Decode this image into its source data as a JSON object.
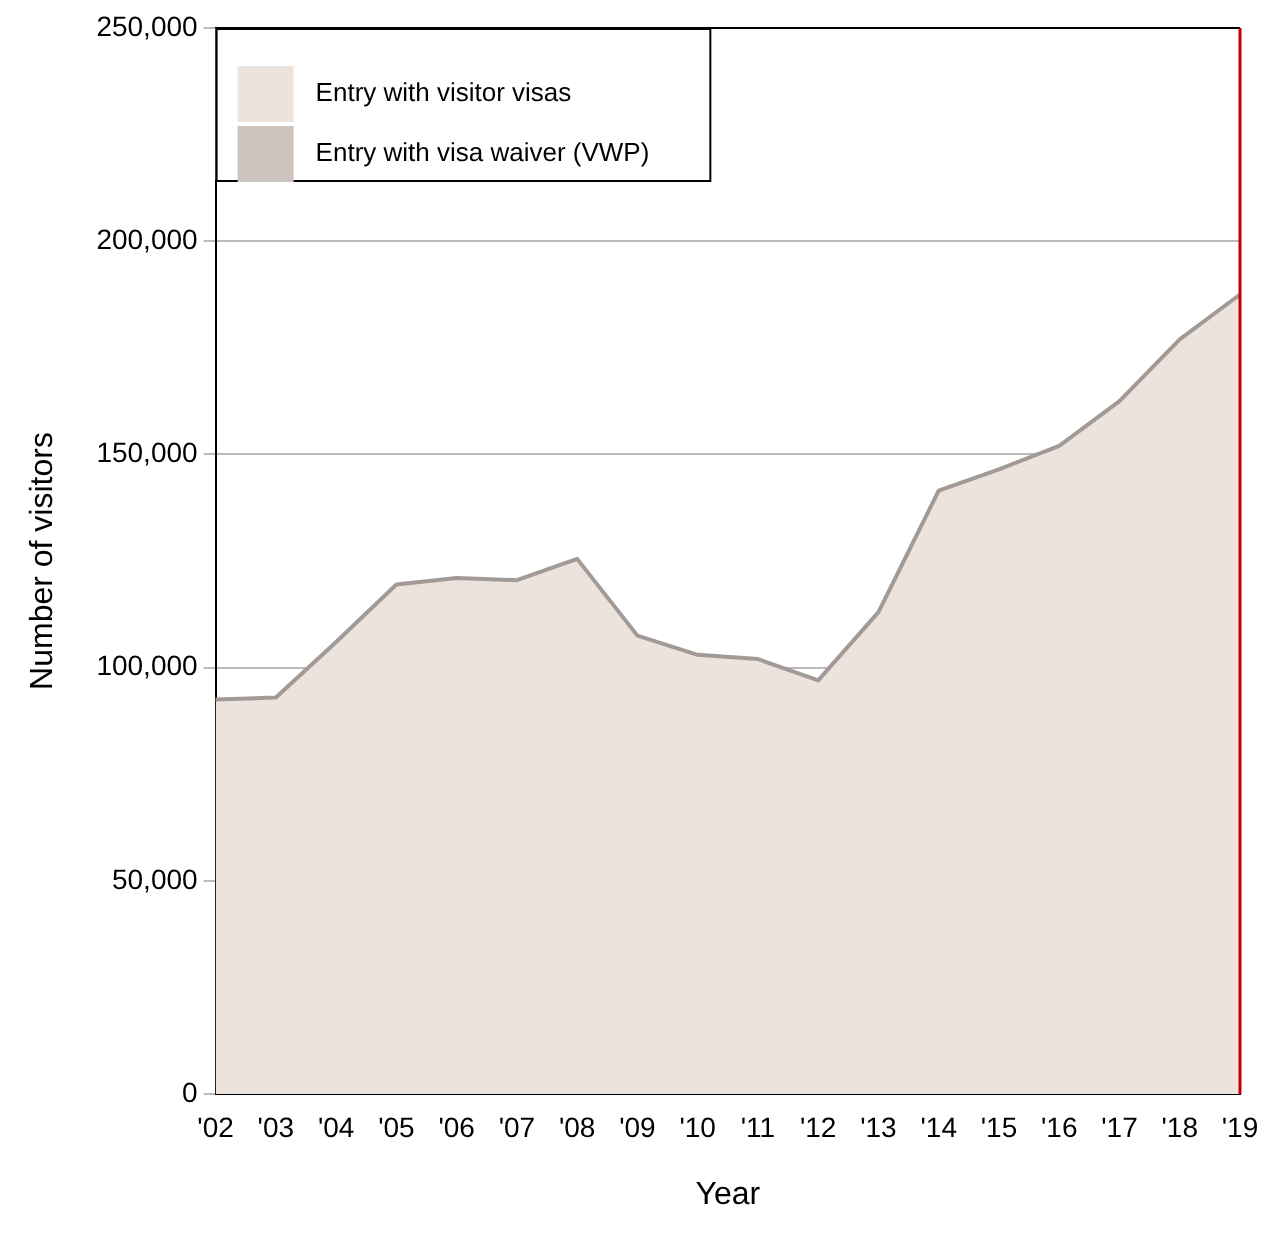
{
  "chart_data": {
    "type": "area",
    "xlabel": "Year",
    "ylabel": "Number of visitors",
    "categories": [
      "'02",
      "'03",
      "'04",
      "'05",
      "'06",
      "'07",
      "'08",
      "'09",
      "'10",
      "'11",
      "'12",
      "'13",
      "'14",
      "'15",
      "'16",
      "'17",
      "'18",
      "'19"
    ],
    "series": [
      {
        "name": "Entry with visitor visas",
        "color": "#ede3dd",
        "values": [
          92500,
          93000,
          106000,
          119500,
          121000,
          120500,
          125500,
          107500,
          103000,
          102000,
          97000,
          113000,
          141500,
          146500,
          152000,
          162500,
          177000,
          187500
        ]
      },
      {
        "name": "Entry with visa waiver (VWP)",
        "color": "#cdc4bf",
        "values": [
          null,
          null,
          null,
          null,
          null,
          null,
          null,
          null,
          null,
          null,
          null,
          null,
          null,
          null,
          null,
          null,
          null,
          null
        ]
      }
    ],
    "ylim": [
      0,
      250000
    ],
    "yticks": [
      0,
      {
        "value": 50000,
        "label": "50,000"
      },
      {
        "value": 100000,
        "label": "100,000"
      },
      {
        "value": 150000,
        "label": "150,000"
      },
      {
        "value": 200000,
        "label": "200,000"
      },
      {
        "value": 250000,
        "label": "250,000"
      }
    ],
    "grid": "y",
    "legend": "top left",
    "ref_lines": [
      {
        "axis": "x",
        "value": "'19",
        "color": "#c00000"
      }
    ]
  }
}
